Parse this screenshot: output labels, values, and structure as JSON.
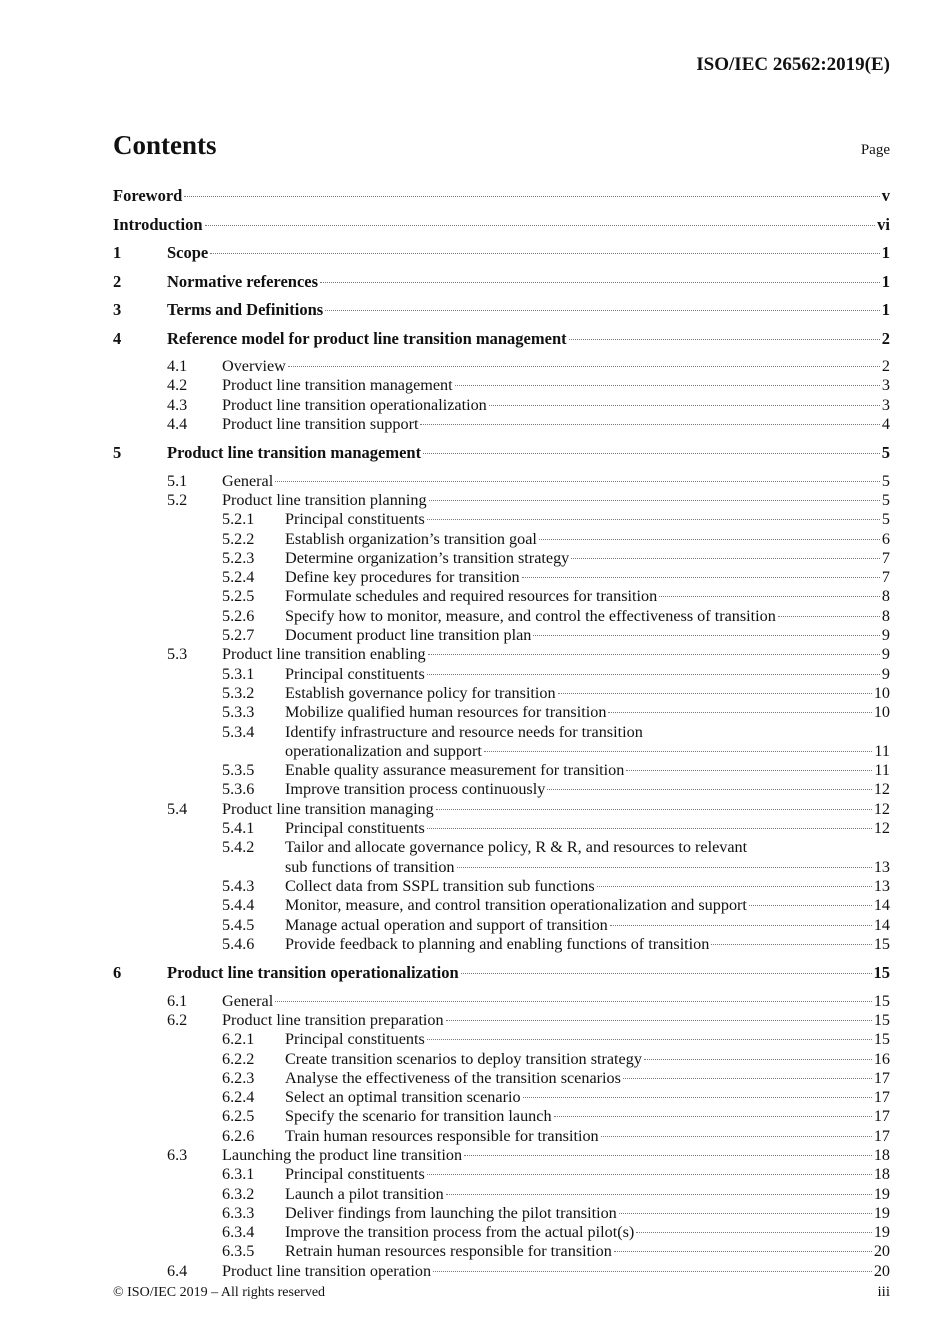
{
  "header": {
    "doc_id": "ISO/IEC 26562:2019(E)"
  },
  "title": "Contents",
  "page_label": "Page",
  "entries": [
    {
      "level": 0,
      "num": "",
      "title": "Foreword",
      "page": "v"
    },
    {
      "level": 0,
      "num": "",
      "title": "Introduction",
      "page": "vi"
    },
    {
      "level": 1,
      "num": "1",
      "title": "Scope",
      "page": "1"
    },
    {
      "level": 1,
      "num": "2",
      "title": "Normative references",
      "page": "1"
    },
    {
      "level": 1,
      "num": "3",
      "title": "Terms and Definitions",
      "page": "1"
    },
    {
      "level": 1,
      "num": "4",
      "title": "Reference model for product line transition management",
      "page": "2"
    },
    {
      "level": 2,
      "num": "4.1",
      "title": "Overview",
      "page": "2"
    },
    {
      "level": 2,
      "num": "4.2",
      "title": "Product line transition management",
      "page": "3"
    },
    {
      "level": 2,
      "num": "4.3",
      "title": "Product line transition operationalization",
      "page": "3"
    },
    {
      "level": 2,
      "num": "4.4",
      "title": "Product line transition support",
      "page": "4"
    },
    {
      "level": 1,
      "num": "5",
      "title": "Product line transition management",
      "page": "5"
    },
    {
      "level": 2,
      "num": "5.1",
      "title": "General",
      "page": "5"
    },
    {
      "level": 2,
      "num": "5.2",
      "title": "Product line transition planning",
      "page": "5"
    },
    {
      "level": 3,
      "num": "5.2.1",
      "title": "Principal constituents",
      "page": "5"
    },
    {
      "level": 3,
      "num": "5.2.2",
      "title": "Establish organization’s transition goal",
      "page": "6"
    },
    {
      "level": 3,
      "num": "5.2.3",
      "title": "Determine organization’s transition strategy",
      "page": "7"
    },
    {
      "level": 3,
      "num": "5.2.4",
      "title": "Define key procedures for transition",
      "page": "7"
    },
    {
      "level": 3,
      "num": "5.2.5",
      "title": "Formulate schedules and required resources for transition",
      "page": "8"
    },
    {
      "level": 3,
      "num": "5.2.6",
      "title": "Specify how to monitor, measure, and control the effectiveness of transition",
      "page": "8"
    },
    {
      "level": 3,
      "num": "5.2.7",
      "title": "Document product line transition plan",
      "page": "9"
    },
    {
      "level": 2,
      "num": "5.3",
      "title": "Product line transition enabling",
      "page": "9"
    },
    {
      "level": 3,
      "num": "5.3.1",
      "title": "Principal constituents",
      "page": "9"
    },
    {
      "level": 3,
      "num": "5.3.2",
      "title": "Establish governance policy for transition",
      "page": "10"
    },
    {
      "level": 3,
      "num": "5.3.3",
      "title": "Mobilize qualified human resources for transition",
      "page": "10"
    },
    {
      "level": 3,
      "num": "5.3.4",
      "title": "Identify infrastructure and resource needs for transition",
      "title_cont": "operationalization and support",
      "page": "11"
    },
    {
      "level": 3,
      "num": "5.3.5",
      "title": "Enable quality assurance measurement for transition",
      "page": "11"
    },
    {
      "level": 3,
      "num": "5.3.6",
      "title": "Improve transition process continuously",
      "page": "12"
    },
    {
      "level": 2,
      "num": "5.4",
      "title": "Product line transition managing",
      "page": "12"
    },
    {
      "level": 3,
      "num": "5.4.1",
      "title": "Principal constituents",
      "page": "12"
    },
    {
      "level": 3,
      "num": "5.4.2",
      "title": "Tailor and allocate governance policy, R & R, and resources to relevant",
      "title_cont": "sub functions of transition",
      "page": "13"
    },
    {
      "level": 3,
      "num": "5.4.3",
      "title": "Collect data from SSPL transition sub functions",
      "page": "13"
    },
    {
      "level": 3,
      "num": "5.4.4",
      "title": "Monitor, measure, and control transition operationalization and support",
      "page": "14"
    },
    {
      "level": 3,
      "num": "5.4.5",
      "title": "Manage actual operation and support of transition",
      "page": "14"
    },
    {
      "level": 3,
      "num": "5.4.6",
      "title": "Provide feedback to planning and enabling functions of transition",
      "page": "15"
    },
    {
      "level": 1,
      "num": "6",
      "title": "Product line transition operationalization",
      "page": "15"
    },
    {
      "level": 2,
      "num": "6.1",
      "title": "General",
      "page": "15"
    },
    {
      "level": 2,
      "num": "6.2",
      "title": "Product line transition preparation",
      "page": "15"
    },
    {
      "level": 3,
      "num": "6.2.1",
      "title": "Principal constituents",
      "page": "15"
    },
    {
      "level": 3,
      "num": "6.2.2",
      "title": "Create transition scenarios to deploy transition strategy",
      "page": "16"
    },
    {
      "level": 3,
      "num": "6.2.3",
      "title": "Analyse the effectiveness of the transition scenarios",
      "page": "17"
    },
    {
      "level": 3,
      "num": "6.2.4",
      "title": "Select an optimal transition scenario",
      "page": "17"
    },
    {
      "level": 3,
      "num": "6.2.5",
      "title": "Specify the scenario for transition launch",
      "page": "17"
    },
    {
      "level": 3,
      "num": "6.2.6",
      "title": "Train human resources responsible for transition",
      "page": "17"
    },
    {
      "level": 2,
      "num": "6.3",
      "title": "Launching the product line transition",
      "page": "18"
    },
    {
      "level": 3,
      "num": "6.3.1",
      "title": "Principal constituents",
      "page": "18"
    },
    {
      "level": 3,
      "num": "6.3.2",
      "title": "Launch a pilot transition",
      "page": "19"
    },
    {
      "level": 3,
      "num": "6.3.3",
      "title": "Deliver findings from launching the pilot transition",
      "page": "19"
    },
    {
      "level": 3,
      "num": "6.3.4",
      "title": "Improve the transition process from the actual pilot(s)",
      "page": "19"
    },
    {
      "level": 3,
      "num": "6.3.5",
      "title": "Retrain human resources responsible for transition",
      "page": "20"
    },
    {
      "level": 2,
      "num": "6.4",
      "title": "Product line transition operation",
      "page": "20"
    }
  ],
  "footer": {
    "copyright": "© ISO/IEC 2019 – All rights reserved",
    "page_number": "iii"
  }
}
